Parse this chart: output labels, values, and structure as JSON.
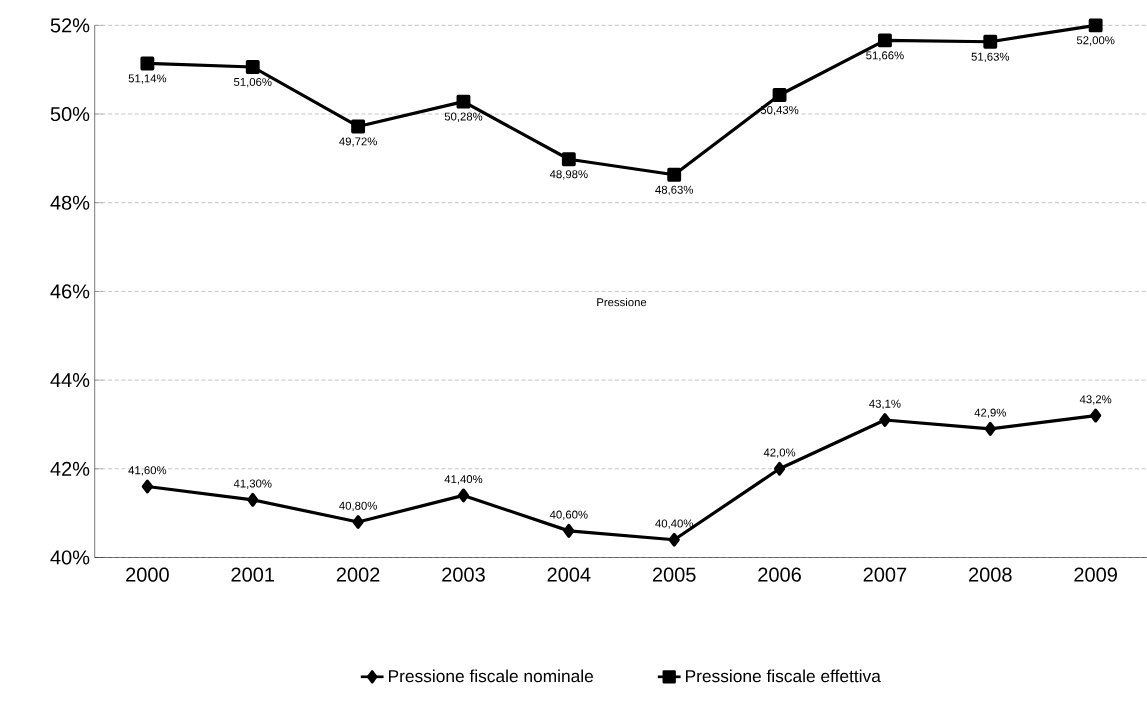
{
  "chart_data": {
    "type": "line",
    "categories": [
      "2000",
      "2001",
      "2002",
      "2003",
      "2004",
      "2005",
      "2006",
      "2007",
      "2008",
      "2009"
    ],
    "series": [
      {
        "name": "Pressione fiscale nominale",
        "color": "#000000",
        "marker": "diamond",
        "values": [
          41.6,
          41.3,
          40.8,
          41.4,
          40.6,
          40.4,
          42.0,
          43.1,
          42.9,
          43.2
        ],
        "value_labels": [
          "41,60%",
          "41,30%",
          "40,80%",
          "41,40%",
          "40,60%",
          "40,40%",
          "42,0%",
          "43,1%",
          "42,9%",
          "43,2%"
        ]
      },
      {
        "name": "Pressione fiscale effettiva",
        "color": "#000000",
        "marker": "square",
        "values": [
          51.14,
          51.06,
          49.72,
          50.28,
          48.98,
          48.63,
          50.43,
          51.66,
          51.63,
          52.0
        ],
        "value_labels": [
          "51,14%",
          "51,06%",
          "49,72%",
          "50,28%",
          "48,98%",
          "48,63%",
          "50,43%",
          "51,66%",
          "51,63%",
          "52,00%"
        ]
      }
    ],
    "ylim": [
      40,
      52
    ],
    "yticks": [
      {
        "value": 40,
        "label": "40%"
      },
      {
        "value": 42,
        "label": "42%"
      },
      {
        "value": 44,
        "label": "44%"
      },
      {
        "value": 46,
        "label": "46%"
      },
      {
        "value": 48,
        "label": "48%"
      },
      {
        "value": 50,
        "label": "50%"
      },
      {
        "value": 52,
        "label": "52%"
      }
    ],
    "grid": "y",
    "legend": "bottom",
    "line_style": "solid",
    "annotations": [
      "Pressione"
    ]
  }
}
